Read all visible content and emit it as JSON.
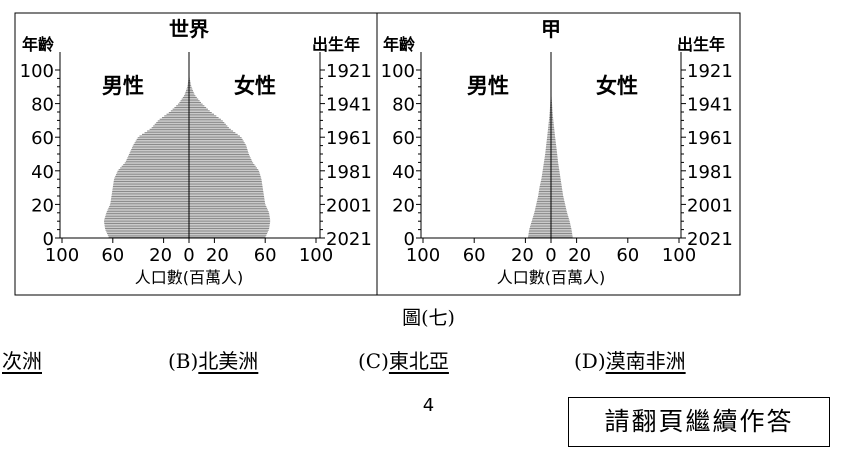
{
  "figure": {
    "caption": "圖(七)",
    "panels": [
      {
        "title": "世界",
        "left_label": "男性",
        "right_label": "女性",
        "y_left_label": "年齡",
        "y_right_label": "出生年",
        "x_label": "人口數(百萬人)"
      },
      {
        "title": "甲",
        "left_label": "男性",
        "right_label": "女性",
        "y_left_label": "年齡",
        "y_right_label": "出生年",
        "x_label": "人口數(百萬人)"
      }
    ]
  },
  "chart_data": [
    {
      "type": "bar",
      "orientation": "horizontal-pyramid",
      "title": "世界",
      "xlabel": "人口數(百萬人)",
      "ylabel": "年齡",
      "y2label": "出生年",
      "x_ticks": [
        "100",
        "60",
        "20",
        "0",
        "20",
        "60",
        "100"
      ],
      "y_ticks": [
        "0",
        "20",
        "40",
        "60",
        "80",
        "100"
      ],
      "y2_ticks": [
        "2021",
        "2001",
        "1981",
        "1961",
        "1941",
        "1921"
      ],
      "age_range": [
        0,
        100
      ],
      "x_max": 100,
      "series": [
        {
          "name": "男性",
          "ages": [
            0,
            5,
            10,
            15,
            20,
            25,
            30,
            35,
            40,
            45,
            50,
            55,
            60,
            65,
            70,
            75,
            80,
            85,
            90,
            95,
            100
          ],
          "values": [
            63,
            66,
            67,
            65,
            62,
            61,
            60,
            59,
            56,
            50,
            47,
            44,
            40,
            30,
            24,
            15,
            8,
            3.5,
            1.2,
            0.3,
            0
          ]
        },
        {
          "name": "女性",
          "ages": [
            0,
            5,
            10,
            15,
            20,
            25,
            30,
            35,
            40,
            45,
            50,
            55,
            60,
            65,
            70,
            75,
            80,
            85,
            90,
            95,
            100
          ],
          "values": [
            60,
            63,
            64,
            63,
            60,
            59,
            58,
            57,
            55,
            50,
            47,
            45,
            41,
            32,
            26,
            17,
            10,
            4.5,
            1.8,
            0.5,
            0
          ]
        }
      ]
    },
    {
      "type": "bar",
      "orientation": "horizontal-pyramid",
      "title": "甲",
      "xlabel": "人口數(百萬人)",
      "ylabel": "年齡",
      "y2label": "出生年",
      "x_ticks": [
        "100",
        "60",
        "20",
        "0",
        "20",
        "60",
        "100"
      ],
      "y_ticks": [
        "0",
        "20",
        "40",
        "60",
        "80",
        "100"
      ],
      "y2_ticks": [
        "2021",
        "2001",
        "1981",
        "1961",
        "1941",
        "1921"
      ],
      "age_range": [
        0,
        100
      ],
      "x_max": 100,
      "series": [
        {
          "name": "男性",
          "ages": [
            0,
            5,
            10,
            15,
            20,
            25,
            30,
            35,
            40,
            45,
            50,
            55,
            60,
            65,
            70,
            75,
            80,
            85,
            90,
            95,
            100
          ],
          "values": [
            18,
            17,
            15,
            13,
            11.5,
            10,
            9,
            7.5,
            6.5,
            5.5,
            4.5,
            3.8,
            3,
            2.3,
            1.6,
            1,
            0.6,
            0.2,
            0,
            0,
            0
          ]
        },
        {
          "name": "女性",
          "ages": [
            0,
            5,
            10,
            15,
            20,
            25,
            30,
            35,
            40,
            45,
            50,
            55,
            60,
            65,
            70,
            75,
            80,
            85,
            90,
            95,
            100
          ],
          "values": [
            17,
            16,
            14.5,
            12.5,
            11,
            9.5,
            8.5,
            7.5,
            6.5,
            5.5,
            4.8,
            4,
            3.2,
            2.5,
            1.8,
            1.2,
            0.8,
            0.3,
            0,
            0,
            0
          ]
        }
      ]
    }
  ],
  "options": [
    {
      "letter": "",
      "text": "次洲"
    },
    {
      "letter": "(B)",
      "text": "北美洲"
    },
    {
      "letter": "(C)",
      "text": "東北亞"
    },
    {
      "letter": "(D)",
      "text": "漠南非洲"
    }
  ],
  "page_number": "4",
  "continue_note": "請翻頁繼續作答"
}
